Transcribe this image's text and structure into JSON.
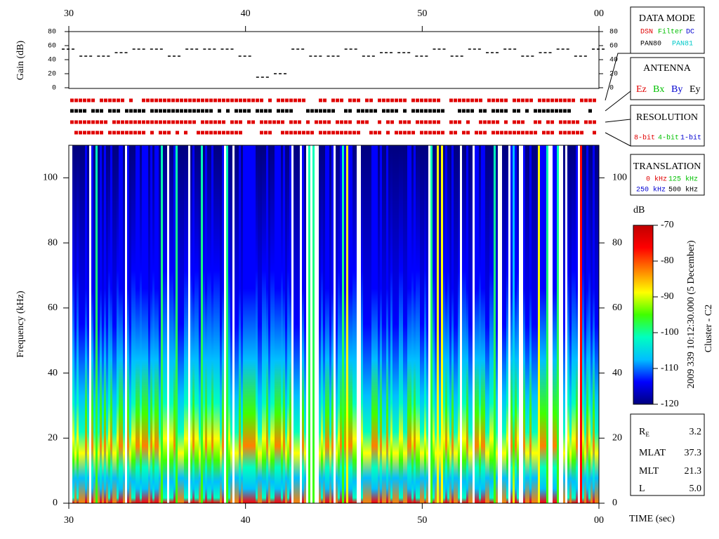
{
  "chart_data": {
    "type": "spectrogram",
    "xlim": [
      30,
      60
    ],
    "xticks": [
      30,
      40,
      50,
      {
        "value": 60,
        "label": "00"
      }
    ],
    "x_label": "TIME (sec)",
    "gain": {
      "y_label": "Gain (dB)",
      "ylim": [
        0,
        80
      ],
      "yticks": [
        0,
        20,
        40,
        60,
        80
      ],
      "color": "#000000",
      "x": [
        30,
        31,
        32,
        33,
        34,
        35,
        36,
        37,
        38,
        39,
        40,
        41,
        42,
        43,
        44,
        45,
        46,
        47,
        48,
        49,
        50,
        51,
        52,
        53,
        54,
        55,
        56,
        57,
        58,
        59,
        60
      ],
      "values": [
        55,
        45,
        45,
        50,
        55,
        55,
        45,
        55,
        55,
        55,
        45,
        15,
        20,
        55,
        45,
        45,
        55,
        45,
        50,
        50,
        45,
        55,
        45,
        55,
        50,
        55,
        45,
        50,
        55,
        45,
        55
      ]
    },
    "spectrogram": {
      "y_label": "Frequency (kHz)",
      "ylim": [
        0,
        110
      ],
      "yticks": [
        0,
        20,
        40,
        60,
        80,
        100
      ]
    },
    "colorbar": {
      "label": "dB",
      "zlim": [
        -120,
        -70
      ],
      "zticks": [
        -120,
        -110,
        -100,
        -90,
        -80,
        -70
      ],
      "colormap": [
        "#00007f",
        "#0000ff",
        "#00bfff",
        "#00ffbf",
        "#40ff00",
        "#ffff00",
        "#ff8000",
        "#ff0000",
        "#c00000"
      ]
    },
    "timestamp": "2009 339 10:12:30.000 (5 December)",
    "spacecraft": "Cluster - C2",
    "panels": [
      {
        "title": "DATA MODE",
        "items": [
          {
            "text": "DSN",
            "color": "#e00000"
          },
          {
            "text": "Filter",
            "color": "#00c000"
          },
          {
            "text": "DC",
            "color": "#0000d0"
          },
          {
            "text": "PAN80",
            "color": "#000000"
          },
          {
            "text": "PAN81",
            "color": "#00c8c8"
          }
        ]
      },
      {
        "title": "ANTENNA",
        "items": [
          {
            "text": "Ez",
            "color": "#e00000"
          },
          {
            "text": "Bx",
            "color": "#00c000"
          },
          {
            "text": "By",
            "color": "#0000d0"
          },
          {
            "text": "Ey",
            "color": "#000000"
          }
        ]
      },
      {
        "title": "RESOLUTION",
        "items": [
          {
            "text": "8-bit",
            "color": "#e00000"
          },
          {
            "text": "4-bit",
            "color": "#00c000"
          },
          {
            "text": "1-bit",
            "color": "#0000d0"
          }
        ]
      },
      {
        "title": "TRANSLATION",
        "items": [
          {
            "text": "0 kHz",
            "color": "#e00000"
          },
          {
            "text": "125 kHz",
            "color": "#00c000"
          },
          {
            "text": "250 kHz",
            "color": "#0000d0"
          },
          {
            "text": "500 kHz",
            "color": "#000000"
          }
        ]
      }
    ],
    "orbit": [
      {
        "label": "R",
        "sub": "E",
        "value": "3.2"
      },
      {
        "label": "MLAT",
        "value": "37.3"
      },
      {
        "label": "MLT",
        "value": "21.3"
      },
      {
        "label": "L",
        "value": "5.0"
      }
    ]
  }
}
